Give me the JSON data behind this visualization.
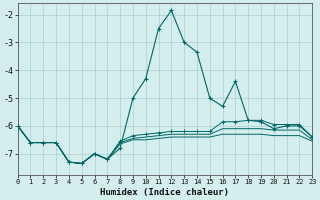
{
  "xlabel": "Humidex (Indice chaleur)",
  "x": [
    0,
    1,
    2,
    3,
    4,
    5,
    6,
    7,
    8,
    9,
    10,
    11,
    12,
    13,
    14,
    15,
    16,
    17,
    18,
    19,
    20,
    21,
    22,
    23
  ],
  "line1": [
    -6.0,
    -6.6,
    -6.6,
    -6.6,
    -7.3,
    -7.35,
    -7.0,
    -7.2,
    -6.8,
    -5.0,
    -4.3,
    -2.5,
    -1.85,
    -3.0,
    -3.35,
    -5.0,
    -5.3,
    -4.4,
    -5.8,
    -5.85,
    -6.1,
    -6.0,
    -6.0,
    -6.4
  ],
  "line2": [
    -6.0,
    -6.6,
    -6.6,
    -6.6,
    -7.3,
    -7.35,
    -7.0,
    -7.2,
    -6.55,
    -6.35,
    -6.3,
    -6.25,
    -6.2,
    -6.2,
    -6.2,
    -6.2,
    -5.85,
    -5.85,
    -5.8,
    -5.8,
    -5.95,
    -5.95,
    -5.95,
    -6.4
  ],
  "line3": [
    -6.0,
    -6.6,
    -6.6,
    -6.6,
    -7.3,
    -7.35,
    -7.0,
    -7.2,
    -6.6,
    -6.45,
    -6.4,
    -6.35,
    -6.3,
    -6.3,
    -6.3,
    -6.3,
    -6.1,
    -6.1,
    -6.1,
    -6.1,
    -6.15,
    -6.15,
    -6.15,
    -6.5
  ],
  "line4": [
    -6.0,
    -6.6,
    -6.6,
    -6.6,
    -7.3,
    -7.35,
    -7.0,
    -7.2,
    -6.65,
    -6.5,
    -6.5,
    -6.45,
    -6.4,
    -6.4,
    -6.4,
    -6.4,
    -6.3,
    -6.3,
    -6.3,
    -6.3,
    -6.35,
    -6.35,
    -6.35,
    -6.55
  ],
  "line_color": "#006666",
  "bg_color": "#d4eeed",
  "grid_color": "#aacfcf",
  "ylim": [
    -7.75,
    -1.6
  ],
  "yticks": [
    -2,
    -3,
    -4,
    -5,
    -6,
    -7
  ],
  "xlim": [
    0,
    23
  ]
}
